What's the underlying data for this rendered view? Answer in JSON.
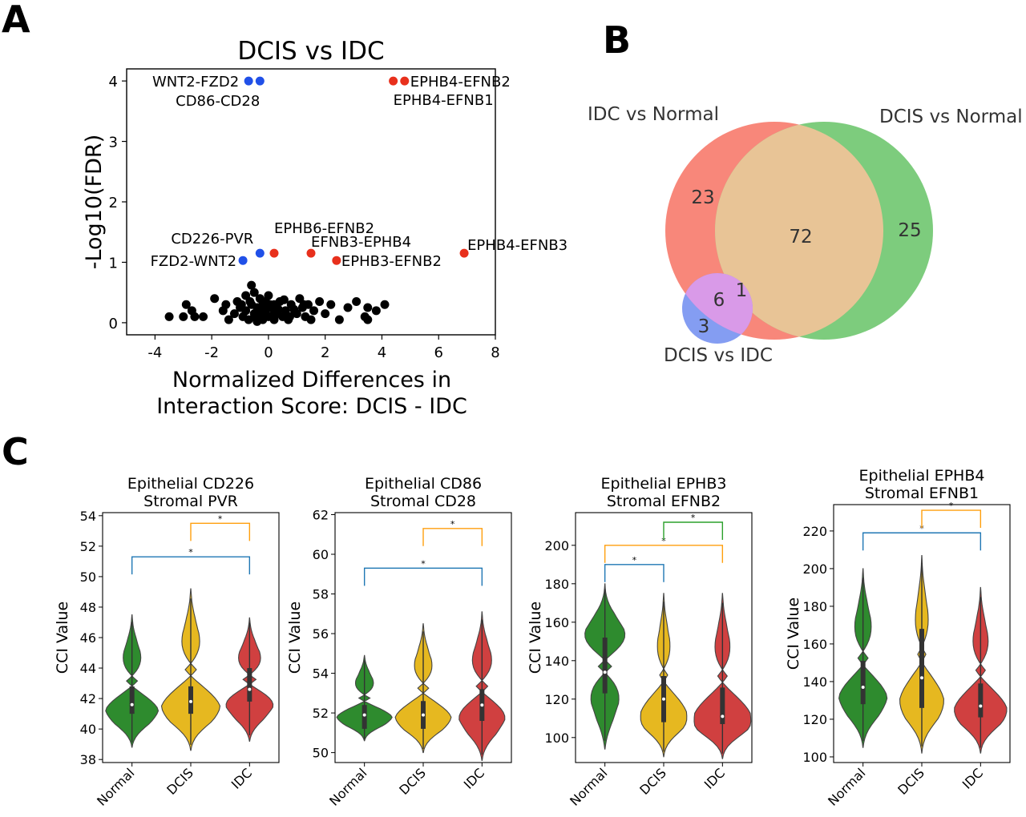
{
  "panel_labels": {
    "a": "A",
    "b": "B",
    "c": "C"
  },
  "colors": {
    "normal": "#2e8b2e",
    "dcis": "#e6b820",
    "idc": "#d04040",
    "pos": "#e8301c",
    "neg": "#2050e8",
    "ns": "#000000",
    "venn_idc": "#f8877a",
    "venn_dcis": "#7dcc7d",
    "venn_dvi": "#6f8cf0",
    "overlap": "#e8c496",
    "brk_blue": "#1f77b4",
    "brk_orange": "#ff9f0e",
    "brk_green": "#2ca02c"
  },
  "chart_data": [
    {
      "id": "volcano",
      "type": "scatter",
      "title": "DCIS vs IDC",
      "xlabel_lines": [
        "Normalized Differences in",
        "Interaction Score: DCIS - IDC"
      ],
      "ylabel": "-Log10(FDR)",
      "xlim": [
        -5,
        8
      ],
      "ylim": [
        -0.2,
        4.2
      ],
      "xticks": [
        -4,
        -2,
        0,
        2,
        4,
        6,
        8
      ],
      "yticks": [
        0,
        1,
        2,
        3,
        4
      ],
      "grid": false,
      "highlighted": [
        {
          "label": "WNT2-FZD2",
          "x": -0.7,
          "y": 4.0,
          "group": "neg"
        },
        {
          "label": "CD86-CD28",
          "x": -0.3,
          "y": 4.0,
          "group": "neg"
        },
        {
          "label": "EPHB4-EFNB2",
          "x": 4.8,
          "y": 4.0,
          "group": "pos"
        },
        {
          "label": "EPHB4-EFNB1",
          "x": 4.4,
          "y": 4.0,
          "group": "pos"
        },
        {
          "label": "CD226-PVR",
          "x": -0.3,
          "y": 1.15,
          "group": "neg"
        },
        {
          "label": "FZD2-WNT2",
          "x": -0.9,
          "y": 1.03,
          "group": "neg"
        },
        {
          "label": "EPHB6-EFNB2",
          "x": 0.2,
          "y": 1.15,
          "group": "pos"
        },
        {
          "label": "EFNB3-EPHB4",
          "x": 1.5,
          "y": 1.15,
          "group": "pos"
        },
        {
          "label": "EPHB3-EFNB2",
          "x": 2.4,
          "y": 1.03,
          "group": "pos"
        },
        {
          "label": "EPHB4-EFNB3",
          "x": 6.9,
          "y": 1.15,
          "group": "pos"
        }
      ],
      "background_points": [
        [
          -3.5,
          0.1
        ],
        [
          -2.9,
          0.3
        ],
        [
          -2.7,
          0.2
        ],
        [
          -2.6,
          0.1
        ],
        [
          -3.0,
          0.1
        ],
        [
          -1.9,
          0.4
        ],
        [
          -1.6,
          0.2
        ],
        [
          -1.4,
          0.05
        ],
        [
          -1.2,
          0.15
        ],
        [
          -1.1,
          0.35
        ],
        [
          -1.0,
          0.25
        ],
        [
          -0.9,
          0.1
        ],
        [
          -0.8,
          0.45
        ],
        [
          -0.8,
          0.2
        ],
        [
          -0.7,
          0.05
        ],
        [
          -0.6,
          0.62
        ],
        [
          -0.6,
          0.3
        ],
        [
          -0.5,
          0.15
        ],
        [
          -0.5,
          0.5
        ],
        [
          -0.4,
          0.25
        ],
        [
          -0.4,
          0.02
        ],
        [
          -0.3,
          0.4
        ],
        [
          -0.3,
          0.12
        ],
        [
          -0.2,
          0.3
        ],
        [
          -0.2,
          0.05
        ],
        [
          -0.1,
          0.2
        ],
        [
          -0.1,
          0.35
        ],
        [
          0.0,
          0.1
        ],
        [
          0.0,
          0.45
        ],
        [
          0.1,
          0.25
        ],
        [
          0.2,
          0.05
        ],
        [
          0.2,
          0.3
        ],
        [
          0.3,
          0.15
        ],
        [
          0.4,
          0.35
        ],
        [
          0.5,
          0.1
        ],
        [
          0.6,
          0.2
        ],
        [
          0.7,
          0.05
        ],
        [
          0.8,
          0.3
        ],
        [
          1.0,
          0.15
        ],
        [
          1.1,
          0.4
        ],
        [
          1.2,
          0.25
        ],
        [
          1.3,
          0.1
        ],
        [
          1.4,
          0.3
        ],
        [
          1.5,
          0.05
        ],
        [
          1.6,
          0.2
        ],
        [
          1.8,
          0.35
        ],
        [
          2.0,
          0.15
        ],
        [
          2.2,
          0.3
        ],
        [
          2.5,
          0.05
        ],
        [
          2.8,
          0.25
        ],
        [
          3.1,
          0.35
        ],
        [
          3.4,
          0.1
        ],
        [
          3.5,
          0.25
        ],
        [
          3.5,
          0.05
        ],
        [
          3.8,
          0.2
        ],
        [
          4.1,
          0.3
        ],
        [
          -1.5,
          0.3
        ],
        [
          -0.95,
          0.3
        ],
        [
          -0.65,
          0.35
        ],
        [
          -0.35,
          0.22
        ],
        [
          -0.15,
          0.1
        ],
        [
          0.05,
          0.3
        ],
        [
          0.35,
          0.22
        ],
        [
          0.55,
          0.38
        ],
        [
          0.9,
          0.22
        ],
        [
          1.25,
          0.3
        ],
        [
          -2.3,
          0.1
        ],
        [
          -0.45,
          0.08
        ],
        [
          0.15,
          0.12
        ],
        [
          0.75,
          0.1
        ]
      ]
    },
    {
      "id": "violin_cd226",
      "type": "violin",
      "title_lines": [
        "Epithelial CD226",
        "Stromal PVR"
      ],
      "ylabel": "CCI Value",
      "categories": [
        "Normal",
        "DCIS",
        "IDC"
      ],
      "ylim": [
        37.8,
        54.2
      ],
      "yticks": [
        38,
        40,
        42,
        44,
        46,
        48,
        50,
        52,
        54
      ],
      "stats": [
        {
          "min": 38.8,
          "q1": 41.0,
          "median": 41.6,
          "q3": 42.8,
          "max": 47.5,
          "mode": 41.5,
          "width": 0.26
        },
        {
          "min": 38.6,
          "q1": 41.0,
          "median": 41.8,
          "q3": 42.8,
          "max": 49.2,
          "mode": 41.6,
          "width": 0.28
        },
        {
          "min": 39.2,
          "q1": 41.8,
          "median": 42.6,
          "q3": 44.0,
          "max": 47.3,
          "mode": 42.3,
          "width": 0.27
        }
      ],
      "brackets": [
        {
          "from": 0,
          "to": 2,
          "y": 51.3,
          "label": "*",
          "color": "brk_blue"
        },
        {
          "from": 1,
          "to": 2,
          "y": 53.5,
          "label": "*",
          "color": "brk_orange"
        }
      ]
    },
    {
      "id": "violin_cd86",
      "type": "violin",
      "title_lines": [
        "Epithelial CD86",
        "Stromal CD28"
      ],
      "ylabel": "CCI Value",
      "categories": [
        "Normal",
        "DCIS",
        "IDC"
      ],
      "ylim": [
        49.5,
        62.1
      ],
      "yticks": [
        50,
        52,
        54,
        56,
        58,
        60,
        62
      ],
      "stats": [
        {
          "min": 50.6,
          "q1": 51.2,
          "median": 51.9,
          "q3": 52.4,
          "max": 54.9,
          "mode": 51.9,
          "width": 0.27
        },
        {
          "min": 50.0,
          "q1": 51.2,
          "median": 51.9,
          "q3": 52.6,
          "max": 56.5,
          "mode": 51.9,
          "width": 0.27
        },
        {
          "min": 49.6,
          "q1": 51.6,
          "median": 52.4,
          "q3": 53.2,
          "max": 57.1,
          "mode": 52.3,
          "width": 0.25
        }
      ],
      "brackets": [
        {
          "from": 0,
          "to": 2,
          "y": 59.3,
          "label": "*",
          "color": "brk_blue"
        },
        {
          "from": 1,
          "to": 2,
          "y": 61.3,
          "label": "*",
          "color": "brk_orange"
        }
      ]
    },
    {
      "id": "violin_ephb3",
      "type": "violin",
      "title_lines": [
        "Epithelial EPHB3",
        "Stromal EFNB2"
      ],
      "ylabel": "CCI Value",
      "categories": [
        "Normal",
        "DCIS",
        "IDC"
      ],
      "ylim": [
        87,
        217
      ],
      "yticks": [
        100,
        120,
        140,
        160,
        180,
        200
      ],
      "stats": [
        {
          "min": 94,
          "q1": 123,
          "median": 134,
          "q3": 152,
          "max": 180,
          "mode": 145,
          "width": 0.26
        },
        {
          "min": 90,
          "q1": 108,
          "median": 120,
          "q3": 132,
          "max": 175,
          "mode": 110,
          "width": 0.22
        },
        {
          "min": 89,
          "q1": 107,
          "median": 111,
          "q3": 126,
          "max": 175,
          "mode": 108,
          "width": 0.27
        }
      ],
      "brackets": [
        {
          "from": 0,
          "to": 1,
          "y": 190,
          "label": "*",
          "color": "brk_blue"
        },
        {
          "from": 0,
          "to": 2,
          "y": 200,
          "label": "*",
          "color": "brk_orange"
        },
        {
          "from": 1,
          "to": 2,
          "y": 212,
          "label": "*",
          "color": "brk_green"
        }
      ]
    },
    {
      "id": "violin_ephb4",
      "type": "violin",
      "title_lines": [
        "Epithelial EPHB4",
        "Stromal EFNB1"
      ],
      "ylabel": "CCI Value",
      "categories": [
        "Normal",
        "DCIS",
        "IDC"
      ],
      "ylim": [
        97,
        234
      ],
      "yticks": [
        100,
        120,
        140,
        160,
        180,
        200,
        220
      ],
      "stats": [
        {
          "min": 105,
          "q1": 128,
          "median": 137,
          "q3": 151,
          "max": 200,
          "mode": 135,
          "width": 0.24
        },
        {
          "min": 102,
          "q1": 126,
          "median": 142,
          "q3": 168,
          "max": 207,
          "mode": 130,
          "width": 0.21
        },
        {
          "min": 102,
          "q1": 121,
          "median": 127,
          "q3": 139,
          "max": 190,
          "mode": 125,
          "width": 0.25
        }
      ],
      "brackets": [
        {
          "from": 0,
          "to": 2,
          "y": 219,
          "label": "*",
          "color": "brk_blue"
        },
        {
          "from": 1,
          "to": 2,
          "y": 231,
          "label": "*",
          "color": "brk_orange"
        }
      ]
    }
  ],
  "venn": {
    "sets": [
      {
        "name": "IDC vs Normal",
        "color": "venn_idc"
      },
      {
        "name": "DCIS vs Normal",
        "color": "venn_dcis"
      },
      {
        "name": "DCIS vs IDC",
        "color": "venn_dvi"
      }
    ],
    "regions": [
      {
        "sets": [
          "IDC vs Normal"
        ],
        "value": "23"
      },
      {
        "sets": [
          "IDC vs Normal",
          "DCIS vs Normal"
        ],
        "value": "72"
      },
      {
        "sets": [
          "DCIS vs Normal"
        ],
        "value": "25"
      },
      {
        "sets": [
          "IDC vs Normal",
          "DCIS vs IDC"
        ],
        "value": "6"
      },
      {
        "sets": [
          "IDC vs Normal",
          "DCIS vs Normal",
          "DCIS vs IDC"
        ],
        "value": "1"
      },
      {
        "sets": [
          "DCIS vs IDC"
        ],
        "value": "3"
      }
    ]
  }
}
